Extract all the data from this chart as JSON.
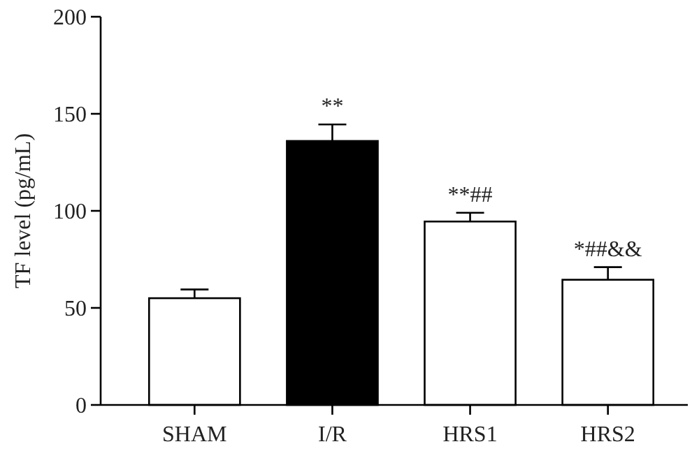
{
  "chart_data": {
    "type": "bar",
    "ylabel": "TF level (pg/mL)",
    "categories": [
      "SHAM",
      "I/R",
      "HRS1",
      "HRS2"
    ],
    "values": [
      55,
      136,
      94.5,
      64.5
    ],
    "errors": [
      4.5,
      8.5,
      4.5,
      6.5
    ],
    "colors": [
      "#ffffff",
      "#000000",
      "#ffffff",
      "#ffffff"
    ],
    "ylim": [
      0,
      200
    ],
    "yticks": [
      0,
      50,
      100,
      150,
      200
    ],
    "grid": false,
    "annotations": [
      {
        "text": "**",
        "x": "I/R",
        "y": 144.5
      },
      {
        "text": "**##",
        "x": "HRS1",
        "y": 99
      },
      {
        "text": "*##&&",
        "x": "HRS2",
        "y": 71
      }
    ]
  }
}
